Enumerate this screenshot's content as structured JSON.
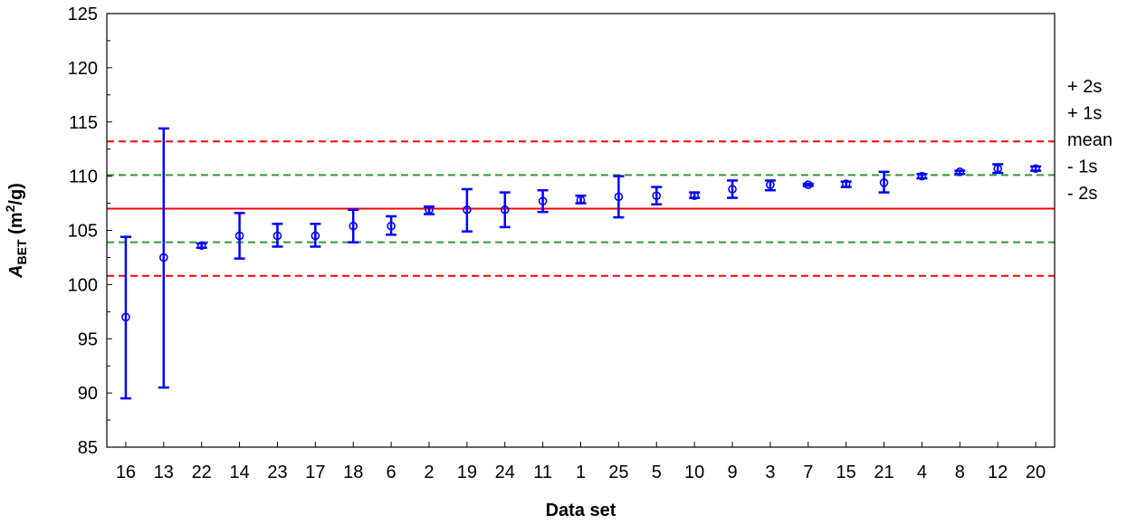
{
  "chart_data": {
    "type": "scatter",
    "xlabel": "Data set",
    "ylabel": {
      "italic": "A",
      "subscript": "BET",
      "unit_prefix": " (m",
      "superscript": "2",
      "unit_suffix": "/g)"
    },
    "ylim": [
      85,
      125
    ],
    "yticks": [
      85,
      90,
      95,
      100,
      105,
      110,
      115,
      120,
      125
    ],
    "grid": false,
    "categories": [
      "16",
      "13",
      "22",
      "14",
      "23",
      "17",
      "18",
      "6",
      "2",
      "19",
      "24",
      "11",
      "1",
      "25",
      "5",
      "10",
      "9",
      "3",
      "7",
      "15",
      "21",
      "4",
      "8",
      "12",
      "20"
    ],
    "series": [
      {
        "values": [
          97.0,
          102.5,
          103.6,
          104.5,
          104.5,
          104.5,
          105.4,
          105.4,
          106.9,
          106.9,
          106.9,
          107.7,
          107.8,
          108.1,
          108.2,
          108.2,
          108.8,
          109.2,
          109.2,
          109.3,
          109.4,
          110.0,
          110.4,
          110.7,
          110.7
        ],
        "err_low": [
          89.5,
          90.5,
          103.4,
          102.4,
          103.5,
          103.5,
          103.9,
          104.6,
          106.5,
          104.9,
          105.3,
          106.7,
          107.5,
          106.2,
          107.4,
          108.0,
          108.0,
          108.7,
          109.1,
          109.0,
          108.5,
          109.8,
          110.2,
          110.3,
          110.5
        ],
        "err_high": [
          104.4,
          114.4,
          103.8,
          106.6,
          105.6,
          105.6,
          106.9,
          106.3,
          107.2,
          108.8,
          108.5,
          108.7,
          108.2,
          110.0,
          109.0,
          108.5,
          109.6,
          109.6,
          109.3,
          109.5,
          110.4,
          110.2,
          110.5,
          111.1,
          110.9
        ],
        "color": "#0000ff"
      }
    ],
    "reference_lines": [
      {
        "label": "+ 2s",
        "value": 113.2,
        "color": "#ff0000",
        "style": "dashed"
      },
      {
        "label": "+ 1s",
        "value": 110.1,
        "color": "#339933",
        "style": "dashed"
      },
      {
        "label": "mean",
        "value": 107.0,
        "color": "#ff0000",
        "style": "solid"
      },
      {
        "label": "- 1s",
        "value": 103.9,
        "color": "#339933",
        "style": "dashed"
      },
      {
        "label": "- 2s",
        "value": 100.8,
        "color": "#ff0000",
        "style": "dashed"
      }
    ]
  }
}
